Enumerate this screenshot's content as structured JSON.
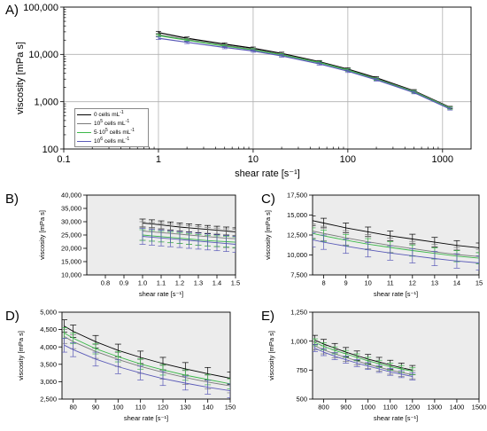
{
  "figure": {
    "panels": [
      {
        "label": "A)"
      },
      {
        "label": "B)"
      },
      {
        "label": "C)"
      },
      {
        "label": "D)"
      },
      {
        "label": "E)"
      }
    ]
  },
  "legend": [
    {
      "label": "0  cells mL",
      "sup": "-1",
      "color": "#000000"
    },
    {
      "label": "10",
      "sup5": "5",
      "label2": " cells mL",
      "sup": "-1",
      "color": "#7a7a7a"
    },
    {
      "label": "5·10",
      "sup5": "5",
      "label2": "  cells mL",
      "sup": "-1",
      "color": "#3cb84a"
    },
    {
      "label": "10",
      "sup5": "6",
      "label2": " cells mL",
      "sup": "-1",
      "color": "#5a5ab8"
    }
  ],
  "chart_data": [
    {
      "panel": "A)",
      "type": "line",
      "xlabel": "shear rate [s⁻¹]",
      "ylabel": "viscosity [mPa s]",
      "xscale": "log",
      "yscale": "log",
      "xlim": [
        0.1,
        2000
      ],
      "ylim": [
        100,
        100000
      ],
      "xticks": [
        0.1,
        1,
        10,
        100,
        1000
      ],
      "xticklabels": [
        "0.1",
        "1",
        "10",
        "100",
        "1000"
      ],
      "yticks": [
        100,
        1000,
        10000,
        100000
      ],
      "yticklabels": [
        "100",
        "1,000",
        "10,000",
        "100,000"
      ],
      "grid": true,
      "background": "#ffffff",
      "series": [
        {
          "color": "#000000",
          "x": [
            1,
            2,
            5,
            10,
            20,
            50,
            100,
            200,
            500,
            1200
          ],
          "y": [
            29000,
            22000,
            16500,
            13500,
            10500,
            7000,
            4900,
            3200,
            1700,
            760
          ],
          "err": [
            0.06,
            0.06,
            0.06,
            0.06,
            0.06,
            0.06,
            0.06,
            0.06,
            0.06,
            0.05
          ]
        },
        {
          "color": "#7a7a7a",
          "x": [
            1,
            2,
            5,
            10,
            20,
            50,
            100,
            200,
            500,
            1200
          ],
          "y": [
            26000,
            20500,
            15500,
            12800,
            10000,
            6800,
            4700,
            3050,
            1650,
            740
          ],
          "err": [
            0.06,
            0.06,
            0.06,
            0.06,
            0.06,
            0.06,
            0.06,
            0.06,
            0.06,
            0.05
          ]
        },
        {
          "color": "#3cb84a",
          "x": [
            1,
            2,
            5,
            10,
            20,
            50,
            100,
            200,
            500,
            1200
          ],
          "y": [
            25000,
            20000,
            15000,
            12500,
            9800,
            6700,
            4650,
            3000,
            1620,
            730
          ],
          "err": [
            0.06,
            0.06,
            0.06,
            0.06,
            0.06,
            0.06,
            0.06,
            0.06,
            0.06,
            0.05
          ]
        },
        {
          "color": "#5a5ab8",
          "x": [
            1,
            2,
            5,
            10,
            20,
            50,
            100,
            200,
            500,
            1200
          ],
          "y": [
            22000,
            18000,
            14000,
            11800,
            9300,
            6300,
            4400,
            2900,
            1560,
            700
          ],
          "err": [
            0.06,
            0.06,
            0.06,
            0.06,
            0.06,
            0.06,
            0.06,
            0.06,
            0.06,
            0.05
          ]
        }
      ]
    },
    {
      "panel": "B)",
      "type": "line",
      "xlabel": "shear rate [s⁻¹]",
      "ylabel": "viscosity [mPa s]",
      "xscale": "linear",
      "yscale": "linear",
      "xlim": [
        0.7,
        1.5
      ],
      "ylim": [
        10000,
        40000
      ],
      "xticks": [
        0.8,
        0.9,
        1.0,
        1.1,
        1.2,
        1.3,
        1.4,
        1.5
      ],
      "xticklabels": [
        "0.8",
        "0.9",
        "1.0",
        "1.1",
        "1.2",
        "1.3",
        "1.4",
        "1.5"
      ],
      "yticks": [
        10000,
        15000,
        20000,
        25000,
        30000,
        35000,
        40000
      ],
      "yticklabels": [
        "10,000",
        "15,000",
        "20,000",
        "25,000",
        "30,000",
        "35,000",
        "40,000"
      ],
      "grid": false,
      "background": "#ececec",
      "series": [
        {
          "color": "#000000",
          "x": [
            1.0,
            1.05,
            1.1,
            1.15,
            1.2,
            1.25,
            1.3,
            1.35,
            1.4,
            1.45,
            1.5
          ],
          "y": [
            29500,
            29200,
            28800,
            28400,
            28000,
            27700,
            27400,
            27100,
            26800,
            26500,
            26200
          ],
          "err": [
            1500,
            1500,
            1500,
            1500,
            1500,
            1500,
            1500,
            1500,
            1500,
            1500,
            1500
          ]
        },
        {
          "color": "#7a7a7a",
          "x": [
            1.0,
            1.05,
            1.1,
            1.15,
            1.2,
            1.25,
            1.3,
            1.35,
            1.4,
            1.45,
            1.5
          ],
          "y": [
            26500,
            26200,
            25900,
            25600,
            25300,
            25000,
            24700,
            24400,
            24100,
            23800,
            23600
          ],
          "err": [
            3500,
            3500,
            3500,
            3500,
            3500,
            3500,
            3500,
            3500,
            3500,
            3500,
            3500
          ]
        },
        {
          "color": "#3cb84a",
          "x": [
            1.0,
            1.05,
            1.1,
            1.15,
            1.2,
            1.25,
            1.3,
            1.35,
            1.4,
            1.45,
            1.5
          ],
          "y": [
            25000,
            24700,
            24400,
            24100,
            23800,
            23500,
            23200,
            22900,
            22700,
            22500,
            22300
          ],
          "err": [
            2000,
            2000,
            2000,
            2000,
            2000,
            2000,
            2000,
            2000,
            2000,
            2000,
            2000
          ]
        },
        {
          "color": "#5a5ab8",
          "x": [
            1.0,
            1.05,
            1.1,
            1.15,
            1.2,
            1.25,
            1.3,
            1.35,
            1.4,
            1.45,
            1.5
          ],
          "y": [
            24500,
            24200,
            23900,
            23600,
            23300,
            23000,
            22700,
            22400,
            22100,
            21800,
            21500
          ],
          "err": [
            3000,
            3000,
            3000,
            3000,
            3000,
            3000,
            3000,
            3000,
            3000,
            3000,
            3000
          ]
        }
      ]
    },
    {
      "panel": "C)",
      "type": "line",
      "xlabel": "shear rate [s⁻¹]",
      "ylabel": "viscosity [mPa s]",
      "xscale": "linear",
      "yscale": "linear",
      "xlim": [
        7.5,
        15
      ],
      "ylim": [
        7500,
        17500
      ],
      "xticks": [
        8,
        9,
        10,
        11,
        12,
        13,
        14,
        15
      ],
      "xticklabels": [
        "8",
        "9",
        "10",
        "11",
        "12",
        "13",
        "14",
        "15"
      ],
      "yticks": [
        7500,
        10000,
        12500,
        15000,
        17500
      ],
      "yticklabels": [
        "7,500",
        "10,000",
        "12,500",
        "15,000",
        "17,500"
      ],
      "grid": false,
      "background": "#ececec",
      "series": [
        {
          "color": "#000000",
          "x": [
            7.5,
            8,
            9,
            10,
            11,
            12,
            13,
            14,
            15
          ],
          "y": [
            14300,
            14000,
            13400,
            12900,
            12400,
            12000,
            11600,
            11200,
            10900
          ],
          "err": [
            600,
            600,
            600,
            600,
            600,
            600,
            600,
            600,
            600
          ]
        },
        {
          "color": "#7a7a7a",
          "x": [
            7.5,
            8,
            9,
            10,
            11,
            12,
            13,
            14,
            15
          ],
          "y": [
            13000,
            12700,
            12150,
            11650,
            11200,
            10800,
            10400,
            10050,
            9800
          ],
          "err": [
            900,
            900,
            900,
            900,
            900,
            900,
            900,
            900,
            900
          ]
        },
        {
          "color": "#3cb84a",
          "x": [
            7.5,
            8,
            9,
            10,
            11,
            12,
            13,
            14,
            15
          ],
          "y": [
            12700,
            12400,
            11850,
            11350,
            10950,
            10550,
            10200,
            9850,
            9600
          ],
          "err": [
            700,
            700,
            700,
            700,
            700,
            700,
            700,
            700,
            700
          ]
        },
        {
          "color": "#5a5ab8",
          "x": [
            7.5,
            8,
            9,
            10,
            11,
            12,
            13,
            14,
            15
          ],
          "y": [
            11900,
            11600,
            11100,
            10650,
            10250,
            9900,
            9550,
            9250,
            9000
          ],
          "err": [
            900,
            900,
            900,
            900,
            900,
            900,
            900,
            900,
            900
          ]
        }
      ]
    },
    {
      "panel": "D)",
      "type": "line",
      "xlabel": "shear rate [s⁻¹]",
      "ylabel": "viscosity [mPa s]",
      "xscale": "linear",
      "yscale": "linear",
      "xlim": [
        75,
        150
      ],
      "ylim": [
        2500,
        5000
      ],
      "xticks": [
        80,
        90,
        100,
        110,
        120,
        130,
        140,
        150
      ],
      "xticklabels": [
        "80",
        "90",
        "100",
        "110",
        "120",
        "130",
        "140",
        "150"
      ],
      "yticks": [
        2500,
        3000,
        3500,
        4000,
        4500,
        5000
      ],
      "yticklabels": [
        "2,500",
        "3,000",
        "3,500",
        "4,000",
        "4,500",
        "5,000"
      ],
      "grid": false,
      "background": "#ececec",
      "series": [
        {
          "color": "#000000",
          "x": [
            76,
            80,
            90,
            100,
            110,
            120,
            130,
            140,
            150
          ],
          "y": [
            4600,
            4450,
            4150,
            3900,
            3700,
            3520,
            3370,
            3230,
            3100
          ],
          "err": [
            180,
            180,
            180,
            180,
            180,
            180,
            180,
            180,
            180
          ]
        },
        {
          "color": "#7a7a7a",
          "x": [
            76,
            80,
            90,
            100,
            110,
            120,
            130,
            140,
            150
          ],
          "y": [
            4300,
            4150,
            3870,
            3640,
            3440,
            3270,
            3120,
            2990,
            2880
          ],
          "err": [
            200,
            200,
            200,
            200,
            200,
            200,
            200,
            200,
            200
          ]
        },
        {
          "color": "#3cb84a",
          "x": [
            76,
            80,
            90,
            100,
            110,
            120,
            130,
            140,
            150
          ],
          "y": [
            4400,
            4250,
            3950,
            3720,
            3510,
            3340,
            3190,
            3060,
            2940
          ],
          "err": [
            150,
            150,
            150,
            150,
            150,
            150,
            150,
            150,
            150
          ]
        },
        {
          "color": "#5a5ab8",
          "x": [
            76,
            80,
            90,
            100,
            110,
            120,
            130,
            140,
            150
          ],
          "y": [
            4050,
            3920,
            3650,
            3430,
            3250,
            3090,
            2960,
            2840,
            2740
          ],
          "err": [
            200,
            200,
            200,
            200,
            200,
            200,
            200,
            200,
            200
          ]
        }
      ]
    },
    {
      "panel": "E)",
      "type": "line",
      "xlabel": "shear rate [s⁻¹]",
      "ylabel": "viscosity [mPa s]",
      "xscale": "linear",
      "yscale": "linear",
      "xlim": [
        750,
        1500
      ],
      "ylim": [
        500,
        1250
      ],
      "xticks": [
        800,
        900,
        1000,
        1100,
        1200,
        1300,
        1400,
        1500
      ],
      "xticklabels": [
        "800",
        "900",
        "1000",
        "1100",
        "1200",
        "1300",
        "1400",
        "1500"
      ],
      "yticks": [
        500,
        750,
        1000,
        1250
      ],
      "yticklabels": [
        "500",
        "750",
        "1,000",
        "1,250"
      ],
      "grid": false,
      "background": "#ececec",
      "series": [
        {
          "color": "#000000",
          "x": [
            760,
            800,
            850,
            900,
            950,
            1000,
            1050,
            1100,
            1150,
            1200
          ],
          "y": [
            1010,
            975,
            940,
            905,
            875,
            845,
            820,
            795,
            770,
            750
          ],
          "err": [
            40,
            40,
            40,
            40,
            40,
            40,
            40,
            40,
            40,
            40
          ]
        },
        {
          "color": "#7a7a7a",
          "x": [
            760,
            800,
            850,
            900,
            950,
            1000,
            1050,
            1100,
            1150,
            1200
          ],
          "y": [
            960,
            925,
            890,
            860,
            830,
            800,
            775,
            750,
            730,
            710
          ],
          "err": [
            35,
            35,
            35,
            35,
            35,
            35,
            35,
            35,
            35,
            35
          ]
        },
        {
          "color": "#3cb84a",
          "x": [
            760,
            800,
            850,
            900,
            950,
            1000,
            1050,
            1100,
            1150,
            1200
          ],
          "y": [
            990,
            955,
            920,
            890,
            860,
            830,
            805,
            780,
            760,
            740
          ],
          "err": [
            30,
            30,
            30,
            30,
            30,
            30,
            30,
            30,
            30,
            30
          ]
        },
        {
          "color": "#5a5ab8",
          "x": [
            760,
            800,
            850,
            900,
            950,
            1000,
            1050,
            1100,
            1150,
            1200
          ],
          "y": [
            940,
            905,
            870,
            840,
            810,
            785,
            760,
            735,
            715,
            695
          ],
          "err": [
            30,
            30,
            30,
            30,
            30,
            30,
            30,
            30,
            30,
            30
          ]
        }
      ]
    }
  ]
}
